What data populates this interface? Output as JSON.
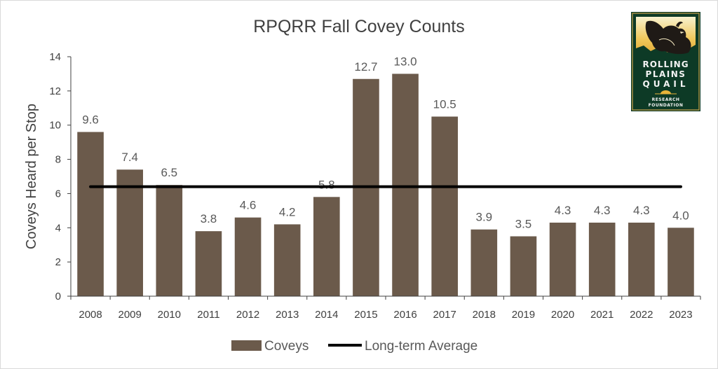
{
  "chart_data": {
    "type": "bar",
    "title": "RPQRR Fall Covey Counts",
    "ylabel": "Coveys Heard per Stop",
    "xlabel": "",
    "ylim": [
      0,
      14
    ],
    "yticks": [
      0,
      2,
      4,
      6,
      8,
      10,
      12,
      14
    ],
    "categories": [
      "2008",
      "2009",
      "2010",
      "2011",
      "2012",
      "2013",
      "2014",
      "2015",
      "2016",
      "2017",
      "2018",
      "2019",
      "2020",
      "2021",
      "2022",
      "2023"
    ],
    "series": [
      {
        "name": "Coveys",
        "type": "bar",
        "color": "#6b5a4b",
        "values": [
          9.6,
          7.4,
          6.5,
          3.8,
          4.6,
          4.2,
          5.8,
          12.7,
          13.0,
          10.5,
          3.9,
          3.5,
          4.3,
          4.3,
          4.3,
          4.0
        ],
        "labels": [
          "9.6",
          "7.4",
          "6.5",
          "3.8",
          "4.6",
          "4.2",
          "5.8",
          "12.7",
          "13.0",
          "10.5",
          "3.9",
          "3.5",
          "4.3",
          "4.3",
          "4.3",
          "4.0"
        ]
      },
      {
        "name": "Long-term Average",
        "type": "line",
        "color": "#000000",
        "value": 6.4
      }
    ],
    "grid": false,
    "legend_position": "bottom"
  },
  "logo": {
    "lines": [
      "ROLLING",
      "PLAINS",
      "QUAIL",
      "RESEARCH",
      "FOUNDATION"
    ],
    "colors": {
      "background": "#0d3a26",
      "gold": "#e8b43a",
      "cream": "#f5e9c0"
    }
  }
}
